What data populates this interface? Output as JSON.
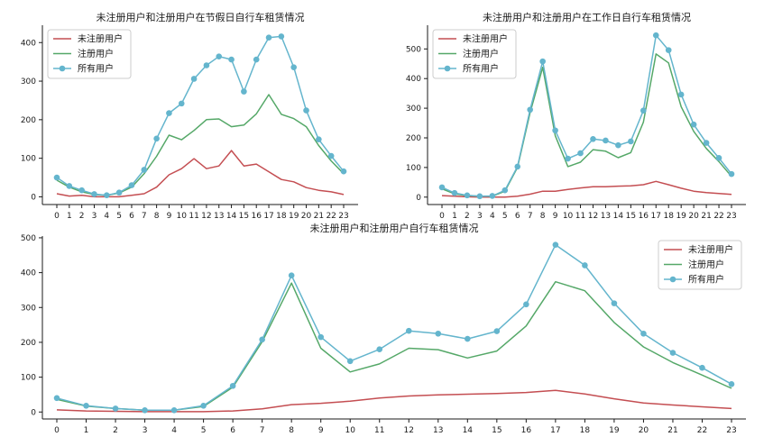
{
  "chart_data": [
    {
      "type": "line",
      "title": "未注册用户和注册用户在节假日自行车租赁情况",
      "xlabel": "",
      "ylabel": "",
      "x": [
        0,
        1,
        2,
        3,
        4,
        5,
        6,
        7,
        8,
        9,
        10,
        11,
        12,
        13,
        14,
        15,
        16,
        17,
        18,
        19,
        20,
        21,
        22,
        23
      ],
      "xticks": [
        "0",
        "1",
        "2",
        "3",
        "4",
        "5",
        "6",
        "7",
        "8",
        "9",
        "10",
        "11",
        "12",
        "13",
        "14",
        "15",
        "16",
        "17",
        "18",
        "19",
        "20",
        "21",
        "22",
        "23"
      ],
      "ylim": [
        -20,
        445
      ],
      "yticks": [
        0,
        100,
        200,
        300,
        400
      ],
      "grid": false,
      "legend": "top-left",
      "series": [
        {
          "name": "未注册用户",
          "color": "#c44e52",
          "marker": false,
          "values": [
            8,
            2,
            4,
            0,
            0,
            0,
            4,
            8,
            25,
            57,
            73,
            99,
            73,
            80,
            120,
            80,
            85,
            65,
            45,
            39,
            24,
            17,
            13,
            6
          ]
        },
        {
          "name": "注册用户",
          "color": "#55a868",
          "marker": false,
          "values": [
            43,
            25,
            13,
            6,
            4,
            10,
            25,
            60,
            105,
            160,
            148,
            172,
            200,
            202,
            182,
            186,
            215,
            265,
            214,
            203,
            182,
            133,
            93,
            60
          ]
        },
        {
          "name": "所有用户",
          "color": "#64b5cd",
          "marker": true,
          "values": [
            50,
            28,
            17,
            7,
            4,
            11,
            30,
            70,
            151,
            217,
            242,
            306,
            341,
            364,
            356,
            273,
            356,
            413,
            416,
            336,
            224,
            149,
            106,
            66
          ]
        }
      ]
    },
    {
      "type": "line",
      "title": "未注册用户和注册用户在工作日自行车租赁情况",
      "xlabel": "",
      "ylabel": "",
      "x": [
        0,
        1,
        2,
        3,
        4,
        5,
        6,
        7,
        8,
        9,
        10,
        11,
        12,
        13,
        14,
        15,
        16,
        17,
        18,
        19,
        20,
        21,
        22,
        23
      ],
      "xticks": [
        "0",
        "1",
        "2",
        "3",
        "4",
        "5",
        "6",
        "7",
        "8",
        "9",
        "10",
        "11",
        "12",
        "13",
        "14",
        "15",
        "16",
        "17",
        "18",
        "19",
        "20",
        "21",
        "22",
        "23"
      ],
      "ylim": [
        -25,
        580
      ],
      "yticks": [
        0,
        100,
        200,
        300,
        400,
        500
      ],
      "grid": false,
      "legend": "top-left",
      "series": [
        {
          "name": "未注册用户",
          "color": "#c44e52",
          "marker": false,
          "values": [
            5,
            3,
            1,
            0,
            0,
            0,
            3,
            10,
            20,
            20,
            26,
            31,
            35,
            35,
            37,
            38,
            42,
            53,
            42,
            30,
            20,
            15,
            12,
            9
          ]
        },
        {
          "name": "注册用户",
          "color": "#55a868",
          "marker": false,
          "values": [
            28,
            11,
            5,
            3,
            3,
            20,
            100,
            285,
            438,
            207,
            103,
            118,
            160,
            155,
            133,
            150,
            253,
            483,
            453,
            305,
            222,
            164,
            120,
            70
          ]
        },
        {
          "name": "所有用户",
          "color": "#64b5cd",
          "marker": true,
          "values": [
            33,
            14,
            6,
            3,
            4,
            23,
            103,
            295,
            458,
            225,
            130,
            148,
            196,
            191,
            175,
            188,
            292,
            546,
            496,
            346,
            245,
            183,
            132,
            78
          ]
        }
      ]
    },
    {
      "type": "line",
      "title": "未注册用户和注册用户自行车租赁情况",
      "xlabel": "",
      "ylabel": "",
      "x": [
        0,
        1,
        2,
        3,
        4,
        5,
        6,
        7,
        8,
        9,
        10,
        11,
        12,
        13,
        14,
        15,
        16,
        17,
        18,
        19,
        20,
        21,
        22,
        23
      ],
      "xticks": [
        "0",
        "1",
        "2",
        "3",
        "4",
        "5",
        "6",
        "7",
        "8",
        "9",
        "10",
        "11",
        "12",
        "13",
        "14",
        "15",
        "16",
        "17",
        "18",
        "19",
        "20",
        "21",
        "22",
        "23"
      ],
      "ylim": [
        -20,
        505
      ],
      "yticks": [
        0,
        100,
        200,
        300,
        400,
        500
      ],
      "grid": false,
      "legend": "top-right",
      "series": [
        {
          "name": "未注册用户",
          "color": "#c44e52",
          "marker": false,
          "values": [
            6,
            3,
            2,
            1,
            1,
            1,
            3,
            9,
            21,
            25,
            31,
            40,
            46,
            49,
            51,
            53,
            56,
            62,
            52,
            38,
            26,
            20,
            15,
            10
          ]
        },
        {
          "name": "注册用户",
          "color": "#55a868",
          "marker": false,
          "values": [
            36,
            17,
            10,
            5,
            5,
            16,
            71,
            202,
            370,
            183,
            115,
            138,
            183,
            179,
            155,
            175,
            247,
            374,
            348,
            257,
            187,
            142,
            106,
            68
          ]
        },
        {
          "name": "所有用户",
          "color": "#64b5cd",
          "marker": true,
          "values": [
            40,
            18,
            10,
            5,
            5,
            18,
            75,
            208,
            392,
            215,
            146,
            180,
            233,
            225,
            210,
            232,
            309,
            480,
            421,
            312,
            225,
            170,
            127,
            80
          ]
        }
      ]
    }
  ]
}
